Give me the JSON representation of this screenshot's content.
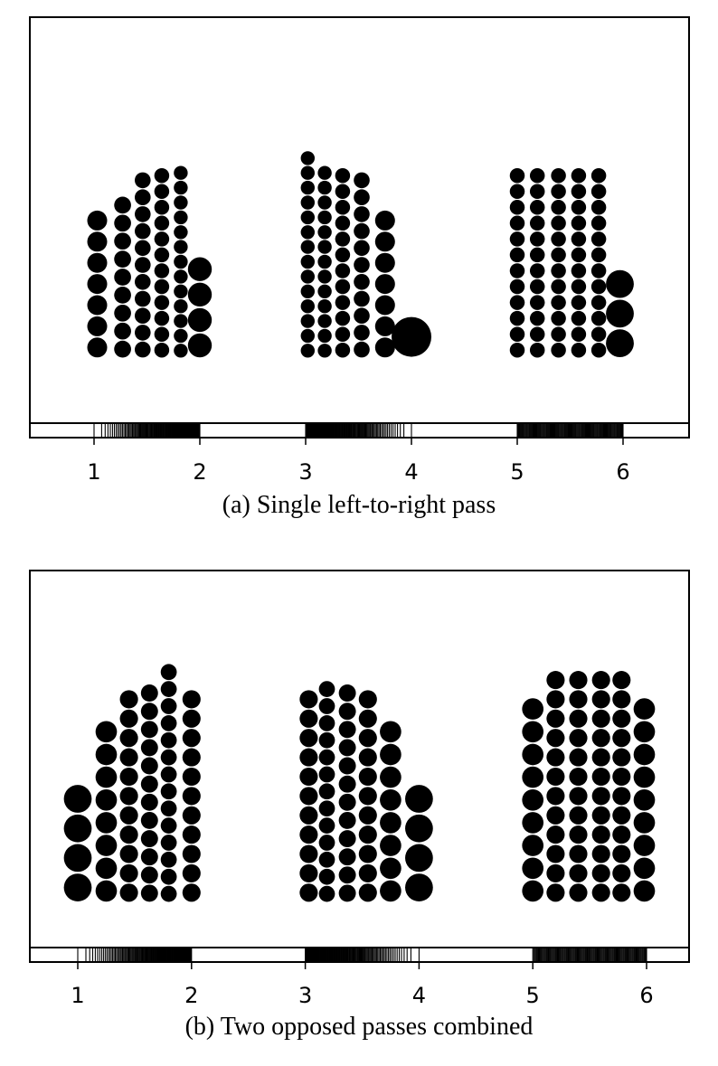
{
  "panels": [
    {
      "caption": "(a) Single left-to-right pass",
      "tick_labels": [
        "1",
        "2",
        "3",
        "4",
        "5",
        "6"
      ],
      "groups": [
        {
          "columns": [
            {
              "x": 1.03,
              "n": 7,
              "r": 0.1
            },
            {
              "x": 1.27,
              "n": 9,
              "r": 0.085
            },
            {
              "x": 1.46,
              "n": 11,
              "r": 0.08
            },
            {
              "x": 1.64,
              "n": 12,
              "r": 0.075
            },
            {
              "x": 1.82,
              "n": 13,
              "r": 0.07
            },
            {
              "x": 2.0,
              "n": 4,
              "r": 0.12
            }
          ]
        },
        {
          "columns": [
            {
              "x": 3.02,
              "n": 14,
              "r": 0.07
            },
            {
              "x": 3.18,
              "n": 13,
              "r": 0.07
            },
            {
              "x": 3.35,
              "n": 12,
              "r": 0.075
            },
            {
              "x": 3.53,
              "n": 11,
              "r": 0.08
            },
            {
              "x": 3.75,
              "n": 7,
              "r": 0.1
            },
            {
              "x": 4.0,
              "n": 1,
              "r": 0.2
            }
          ]
        },
        {
          "columns": [
            {
              "x": 5.0,
              "n": 12,
              "r": 0.075
            },
            {
              "x": 5.19,
              "n": 12,
              "r": 0.075
            },
            {
              "x": 5.39,
              "n": 12,
              "r": 0.075
            },
            {
              "x": 5.58,
              "n": 12,
              "r": 0.075
            },
            {
              "x": 5.77,
              "n": 12,
              "r": 0.075
            },
            {
              "x": 5.97,
              "n": 3,
              "r": 0.14
            }
          ]
        }
      ],
      "rug": [
        {
          "from": 1.0,
          "to": 2.0,
          "sparse": "start"
        },
        {
          "from": 3.0,
          "to": 4.0,
          "sparse": "end"
        },
        {
          "from": 5.0,
          "to": 6.0,
          "sparse": "none"
        }
      ]
    },
    {
      "caption": "(b)  Two opposed passes combined",
      "tick_labels": [
        "1",
        "2",
        "3",
        "4",
        "5",
        "6"
      ],
      "groups": [
        {
          "columns": [
            {
              "x": 1.0,
              "n": 4,
              "r": 0.13
            },
            {
              "x": 1.25,
              "n": 8,
              "r": 0.1
            },
            {
              "x": 1.45,
              "n": 11,
              "r": 0.085
            },
            {
              "x": 1.63,
              "n": 12,
              "r": 0.08
            },
            {
              "x": 1.8,
              "n": 14,
              "r": 0.075
            },
            {
              "x": 2.0,
              "n": 11,
              "r": 0.085
            }
          ]
        },
        {
          "columns": [
            {
              "x": 3.03,
              "n": 11,
              "r": 0.085
            },
            {
              "x": 3.19,
              "n": 13,
              "r": 0.075
            },
            {
              "x": 3.37,
              "n": 12,
              "r": 0.08
            },
            {
              "x": 3.55,
              "n": 11,
              "r": 0.085
            },
            {
              "x": 3.75,
              "n": 8,
              "r": 0.1
            },
            {
              "x": 4.0,
              "n": 4,
              "r": 0.13
            }
          ]
        },
        {
          "columns": [
            {
              "x": 5.0,
              "n": 9,
              "r": 0.1
            },
            {
              "x": 5.2,
              "n": 12,
              "r": 0.085
            },
            {
              "x": 5.4,
              "n": 12,
              "r": 0.085
            },
            {
              "x": 5.6,
              "n": 12,
              "r": 0.085
            },
            {
              "x": 5.78,
              "n": 12,
              "r": 0.085
            },
            {
              "x": 5.98,
              "n": 9,
              "r": 0.1
            }
          ]
        }
      ],
      "rug": [
        {
          "from": 1.0,
          "to": 2.0,
          "sparse": "start"
        },
        {
          "from": 3.0,
          "to": 4.0,
          "sparse": "end"
        },
        {
          "from": 5.0,
          "to": 6.0,
          "sparse": "none"
        }
      ]
    }
  ]
}
